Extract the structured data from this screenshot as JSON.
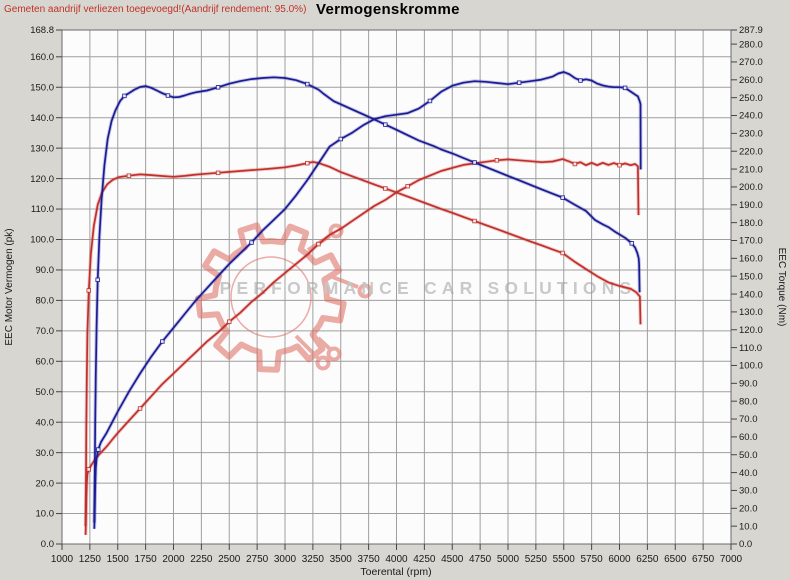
{
  "header": {
    "note": "Gemeten aandrijf verliezen toegevoegd!(Aandrijf rendement: 95.0%)",
    "title": "Vermogenskromme"
  },
  "watermark": {
    "text": "PERFORMANCE CAR SOLUTIONS"
  },
  "colors": {
    "blue_curve": "#1b1b96",
    "red_curve": "#c22f2a",
    "grid": "#9f9f9f",
    "plot_border": "#6a6a6a",
    "plot_background": "#fcfcfc",
    "page_background": "#d8d6d1",
    "tick_label": "#1a1a1a",
    "note_text": "#c03228",
    "watermark_text": "#9a9a9a",
    "watermark_logo": "#dd6a5f"
  },
  "chart_data": {
    "type": "line",
    "title": "Vermogenskromme",
    "xlabel": "Toerental (rpm)",
    "ylabel_left": "EEC Motor Vermogen (pk)",
    "ylabel_right": "EEC Torque (Nm)",
    "x_range": [
      1000,
      7000
    ],
    "x_tick_step": 250,
    "left_axis": {
      "max": 168.8,
      "tick_step": 10,
      "last_regular_tick": 160
    },
    "right_axis": {
      "max": 287.9,
      "tick_step": 10,
      "last_regular_tick": 280
    },
    "grid": true,
    "legend": "none",
    "series": [
      {
        "name": "red-torque",
        "axis": "right",
        "color": "#c22f2a",
        "unit": "Nm",
        "points": [
          [
            1212,
            10
          ],
          [
            1215,
            38
          ],
          [
            1218,
            66
          ],
          [
            1222,
            92
          ],
          [
            1228,
            118
          ],
          [
            1240,
            142
          ],
          [
            1258,
            162
          ],
          [
            1285,
            178
          ],
          [
            1320,
            190
          ],
          [
            1360,
            197
          ],
          [
            1405,
            201.5
          ],
          [
            1455,
            204
          ],
          [
            1510,
            205.5
          ],
          [
            1600,
            206.3
          ],
          [
            1700,
            207
          ],
          [
            1800,
            206.6
          ],
          [
            1900,
            206.1
          ],
          [
            2000,
            205.7
          ],
          [
            2100,
            206.2
          ],
          [
            2200,
            206.9
          ],
          [
            2300,
            207.4
          ],
          [
            2400,
            207.9
          ],
          [
            2500,
            208.4
          ],
          [
            2600,
            208.9
          ],
          [
            2700,
            209.4
          ],
          [
            2800,
            209.9
          ],
          [
            2900,
            210.4
          ],
          [
            3000,
            211
          ],
          [
            3100,
            212
          ],
          [
            3200,
            213.3
          ],
          [
            3250,
            214
          ],
          [
            3300,
            213.4
          ],
          [
            3400,
            211.3
          ],
          [
            3500,
            208.3
          ],
          [
            3600,
            206
          ],
          [
            3700,
            203.7
          ],
          [
            3800,
            201.4
          ],
          [
            3900,
            199.1
          ],
          [
            4000,
            196.9
          ],
          [
            4100,
            194.6
          ],
          [
            4200,
            192.3
          ],
          [
            4300,
            190
          ],
          [
            4400,
            187.7
          ],
          [
            4500,
            185.5
          ],
          [
            4600,
            183.2
          ],
          [
            4700,
            180.9
          ],
          [
            4800,
            178.6
          ],
          [
            4900,
            176.4
          ],
          [
            5000,
            174.1
          ],
          [
            5100,
            171.8
          ],
          [
            5200,
            169.5
          ],
          [
            5300,
            167.3
          ],
          [
            5400,
            165
          ],
          [
            5490,
            163
          ],
          [
            5600,
            158
          ],
          [
            5700,
            154
          ],
          [
            5800,
            150
          ],
          [
            5900,
            146.5
          ],
          [
            6000,
            144.5
          ],
          [
            6100,
            143
          ],
          [
            6150,
            141
          ],
          [
            6183,
            138.6
          ],
          [
            6188,
            123
          ]
        ]
      },
      {
        "name": "red-power",
        "axis": "left",
        "color": "#c22f2a",
        "unit": "pk",
        "points": [
          [
            1212,
            3
          ],
          [
            1215,
            9
          ],
          [
            1218,
            15
          ],
          [
            1222,
            20
          ],
          [
            1228,
            23
          ],
          [
            1240,
            24.5
          ],
          [
            1265,
            26
          ],
          [
            1300,
            28
          ],
          [
            1350,
            30
          ],
          [
            1400,
            32
          ],
          [
            1450,
            34.3
          ],
          [
            1500,
            36.5
          ],
          [
            1600,
            40.5
          ],
          [
            1700,
            44.5
          ],
          [
            1800,
            48.5
          ],
          [
            1900,
            52.5
          ],
          [
            2000,
            56
          ],
          [
            2100,
            59.5
          ],
          [
            2200,
            63
          ],
          [
            2300,
            66.5
          ],
          [
            2400,
            69.5
          ],
          [
            2500,
            73
          ],
          [
            2600,
            76
          ],
          [
            2700,
            79.5
          ],
          [
            2800,
            82.5
          ],
          [
            2900,
            86
          ],
          [
            3000,
            89
          ],
          [
            3100,
            92
          ],
          [
            3200,
            95
          ],
          [
            3300,
            98.5
          ],
          [
            3400,
            101.5
          ],
          [
            3500,
            103.5
          ],
          [
            3600,
            106
          ],
          [
            3700,
            108.5
          ],
          [
            3800,
            111
          ],
          [
            3900,
            113
          ],
          [
            4000,
            115.5
          ],
          [
            4100,
            117.5
          ],
          [
            4200,
            119.5
          ],
          [
            4300,
            121
          ],
          [
            4400,
            122.5
          ],
          [
            4500,
            123.5
          ],
          [
            4600,
            124.5
          ],
          [
            4700,
            125
          ],
          [
            4800,
            125.5
          ],
          [
            4900,
            126
          ],
          [
            5000,
            126.3
          ],
          [
            5100,
            126
          ],
          [
            5200,
            125.7
          ],
          [
            5300,
            125.4
          ],
          [
            5400,
            125.6
          ],
          [
            5490,
            126.4
          ],
          [
            5550,
            125.6
          ],
          [
            5600,
            124.8
          ],
          [
            5650,
            125.4
          ],
          [
            5700,
            124.4
          ],
          [
            5750,
            125.2
          ],
          [
            5800,
            124.4
          ],
          [
            5850,
            125.2
          ],
          [
            5900,
            124.5
          ],
          [
            5950,
            125.1
          ],
          [
            6000,
            124.4
          ],
          [
            6050,
            125
          ],
          [
            6100,
            124.4
          ],
          [
            6140,
            124.8
          ],
          [
            6165,
            124
          ],
          [
            6170,
            108
          ]
        ]
      },
      {
        "name": "blue-torque",
        "axis": "right",
        "color": "#1b1b96",
        "unit": "Nm",
        "points": [
          [
            1290,
            12
          ],
          [
            1294,
            40
          ],
          [
            1298,
            68
          ],
          [
            1303,
            95
          ],
          [
            1310,
            122
          ],
          [
            1320,
            148
          ],
          [
            1335,
            172
          ],
          [
            1355,
            193
          ],
          [
            1380,
            212
          ],
          [
            1410,
            227
          ],
          [
            1445,
            237
          ],
          [
            1480,
            243
          ],
          [
            1520,
            248
          ],
          [
            1560,
            251
          ],
          [
            1600,
            252.5
          ],
          [
            1650,
            254.5
          ],
          [
            1700,
            256
          ],
          [
            1750,
            256.5
          ],
          [
            1800,
            255.5
          ],
          [
            1850,
            254
          ],
          [
            1900,
            252.5
          ],
          [
            1950,
            251.2
          ],
          [
            2000,
            250.2
          ],
          [
            2050,
            250.4
          ],
          [
            2100,
            251.2
          ],
          [
            2150,
            252.2
          ],
          [
            2200,
            253
          ],
          [
            2250,
            253.5
          ],
          [
            2300,
            254
          ],
          [
            2400,
            255.8
          ],
          [
            2500,
            257.8
          ],
          [
            2600,
            259.3
          ],
          [
            2700,
            260.4
          ],
          [
            2800,
            261
          ],
          [
            2900,
            261.4
          ],
          [
            3000,
            261
          ],
          [
            3100,
            259.8
          ],
          [
            3200,
            257.6
          ],
          [
            3300,
            254.5
          ],
          [
            3350,
            252
          ],
          [
            3437,
            248
          ],
          [
            3500,
            246.3
          ],
          [
            3600,
            243.5
          ],
          [
            3700,
            240.7
          ],
          [
            3800,
            237.8
          ],
          [
            3900,
            234.9
          ],
          [
            4000,
            232
          ],
          [
            4100,
            229
          ],
          [
            4200,
            226
          ],
          [
            4330,
            223
          ],
          [
            4400,
            221
          ],
          [
            4500,
            218.8
          ],
          [
            4600,
            216.2
          ],
          [
            4700,
            213.7
          ],
          [
            4800,
            211.2
          ],
          [
            4900,
            208.7
          ],
          [
            5000,
            206.2
          ],
          [
            5100,
            203.7
          ],
          [
            5200,
            201.2
          ],
          [
            5300,
            198.7
          ],
          [
            5400,
            196.2
          ],
          [
            5490,
            194
          ],
          [
            5600,
            190
          ],
          [
            5700,
            186.5
          ],
          [
            5780,
            181.5
          ],
          [
            5850,
            179
          ],
          [
            5900,
            177.5
          ],
          [
            5958,
            175
          ],
          [
            6050,
            171.5
          ],
          [
            6110,
            168.4
          ],
          [
            6140,
            166
          ],
          [
            6160,
            163
          ],
          [
            6172,
            160
          ],
          [
            6176,
            157
          ],
          [
            6180,
            141
          ]
        ]
      },
      {
        "name": "blue-power",
        "axis": "left",
        "color": "#1b1b96",
        "unit": "pk",
        "points": [
          [
            1290,
            5
          ],
          [
            1294,
            12
          ],
          [
            1298,
            19
          ],
          [
            1303,
            25
          ],
          [
            1310,
            28
          ],
          [
            1325,
            31
          ],
          [
            1350,
            33.5
          ],
          [
            1400,
            36.5
          ],
          [
            1450,
            40
          ],
          [
            1500,
            43.5
          ],
          [
            1600,
            50
          ],
          [
            1700,
            56
          ],
          [
            1800,
            61.5
          ],
          [
            1900,
            66.5
          ],
          [
            2000,
            71
          ],
          [
            2100,
            75.5
          ],
          [
            2200,
            80
          ],
          [
            2300,
            84
          ],
          [
            2400,
            88
          ],
          [
            2500,
            92
          ],
          [
            2600,
            95.5
          ],
          [
            2700,
            99
          ],
          [
            2800,
            103
          ],
          [
            2900,
            106.5
          ],
          [
            3000,
            110
          ],
          [
            3100,
            114.5
          ],
          [
            3200,
            119.5
          ],
          [
            3300,
            125
          ],
          [
            3400,
            130.5
          ],
          [
            3500,
            133
          ],
          [
            3600,
            135
          ],
          [
            3700,
            137.5
          ],
          [
            3800,
            139.5
          ],
          [
            3900,
            140.5
          ],
          [
            4000,
            141
          ],
          [
            4100,
            141.5
          ],
          [
            4200,
            143
          ],
          [
            4300,
            145.5
          ],
          [
            4400,
            148.5
          ],
          [
            4500,
            150.5
          ],
          [
            4600,
            151.5
          ],
          [
            4700,
            152
          ],
          [
            4800,
            151.8
          ],
          [
            4900,
            151.4
          ],
          [
            5000,
            151
          ],
          [
            5100,
            151.5
          ],
          [
            5200,
            152
          ],
          [
            5300,
            152.5
          ],
          [
            5400,
            153.5
          ],
          [
            5450,
            154.5
          ],
          [
            5500,
            155
          ],
          [
            5550,
            154.3
          ],
          [
            5600,
            153
          ],
          [
            5650,
            152.2
          ],
          [
            5700,
            152.6
          ],
          [
            5750,
            152.2
          ],
          [
            5800,
            151.2
          ],
          [
            5850,
            150.6
          ],
          [
            5900,
            150.2
          ],
          [
            5950,
            150
          ],
          [
            6000,
            150
          ],
          [
            6050,
            149.8
          ],
          [
            6100,
            148.6
          ],
          [
            6140,
            147.6
          ],
          [
            6165,
            147
          ],
          [
            6180,
            145.5
          ],
          [
            6188,
            144.5
          ],
          [
            6190,
            123
          ]
        ]
      }
    ]
  }
}
